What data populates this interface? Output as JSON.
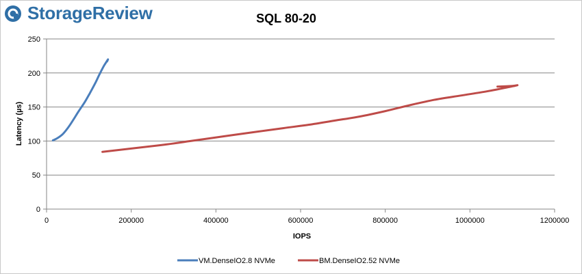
{
  "brand": {
    "name": "StorageReview"
  },
  "chart_data": {
    "type": "line",
    "title": "SQL 80-20",
    "xlabel": "IOPS",
    "ylabel": "Latency (µs)",
    "xlim": [
      0,
      1200000
    ],
    "ylim": [
      0,
      250
    ],
    "xticks": [
      0,
      200000,
      400000,
      600000,
      800000,
      1000000,
      1200000
    ],
    "yticks": [
      0,
      50,
      100,
      150,
      200,
      250
    ],
    "grid": "horizontal",
    "legend": "bottom",
    "series": [
      {
        "name": "VM.DenseIO2.8 NVMe",
        "color": "#4a7ebb",
        "x": [
          15000,
          25000,
          38000,
          50000,
          62000,
          75000,
          90000,
          102000,
          115000,
          125000,
          135000,
          140000,
          145000,
          143000
        ],
        "y": [
          101,
          104,
          110,
          119,
          130,
          143,
          157,
          170,
          185,
          198,
          210,
          215,
          220,
          217
        ]
      },
      {
        "name": "BM.DenseIO2.52 NVMe",
        "color": "#be4b48",
        "x": [
          132000,
          200000,
          270000,
          340000,
          420000,
          500000,
          560000,
          620000,
          680000,
          740000,
          800000,
          860000,
          920000,
          980000,
          1040000,
          1090000,
          1112000,
          1100000,
          1065000
        ],
        "y": [
          84,
          89,
          94,
          100,
          107,
          114,
          119,
          124,
          130,
          136,
          144,
          153,
          161,
          167,
          173,
          179,
          182,
          181,
          180
        ]
      }
    ]
  }
}
